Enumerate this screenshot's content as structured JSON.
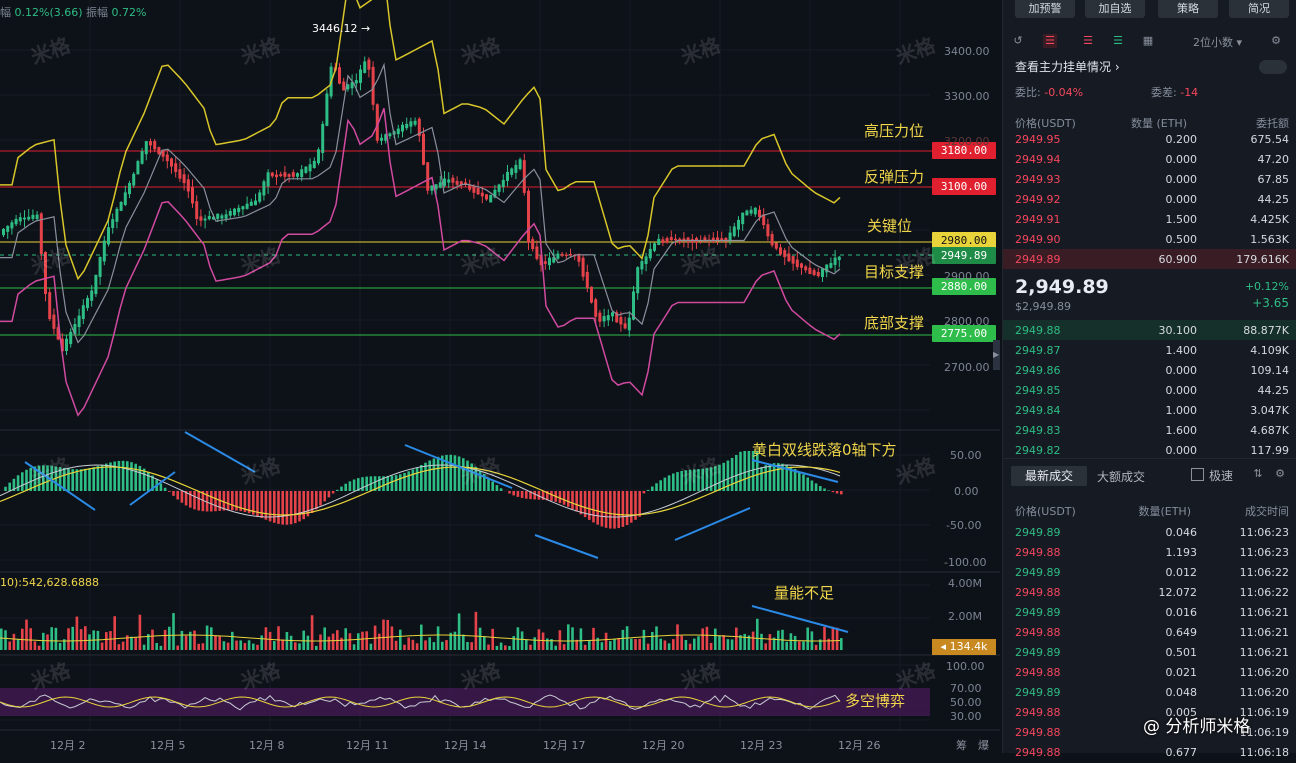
{
  "top_info": {
    "amp_label": "幅",
    "amp_value": "0.12%(3.66)",
    "swing_label": "振幅",
    "swing_value": "0.72%"
  },
  "chart": {
    "high_marker": "3446.12",
    "levels": [
      {
        "label": "高压力位",
        "price": "3180.00",
        "color": "#f6465d"
      },
      {
        "label": "反弹压力",
        "price": "3100.00",
        "color": "#f6465d"
      },
      {
        "label": "关键位",
        "price": "2980.00",
        "color": "#f0d64a"
      },
      {
        "label": "目标支撑",
        "price": "2880.00",
        "color": "#2ebd4a"
      },
      {
        "label": "底部支撑",
        "price": "2775.00",
        "color": "#2ebd4a"
      }
    ],
    "current_price": "2949.89",
    "price_axis": [
      "3400.00",
      "3300.00",
      "3200.00",
      "2900.00",
      "2800.00",
      "2700.00"
    ],
    "macd_axis": [
      "50.00",
      "0.00",
      "-50.00",
      "-100.00"
    ],
    "macd_note": "黄白双线跌落0轴下方",
    "vol_axis": [
      "4.00M",
      "2.00M"
    ],
    "vol_info": "10):542,628.6888",
    "vol_tag": "134.4k",
    "vol_note": "量能不足",
    "rsi_axis": [
      "100.00",
      "70.00",
      "50.00",
      "30.00"
    ],
    "rsi_note": "多空博弈",
    "dates": [
      "12月 2",
      "12月 5",
      "12月 8",
      "12月 11",
      "12月 14",
      "12月 17",
      "12月 20",
      "12月 23",
      "12月 26"
    ],
    "corner": [
      "筹",
      "爆"
    ],
    "watermark": "米格",
    "signature": "@ 分析师米格"
  },
  "panel": {
    "buttons": [
      "加预警",
      "加自选",
      "策略",
      "简况"
    ],
    "precision": "2位小数",
    "main_orders": "查看主力挂单情况",
    "ratio_label": "委比:",
    "ratio_value": "-0.04%",
    "diff_label": "委差:",
    "diff_value": "-14",
    "book_headers": [
      "价格(USDT)",
      "数量 (ETH)",
      "委托额"
    ],
    "asks": [
      [
        "2949.95",
        "0.200",
        "675.54"
      ],
      [
        "2949.94",
        "0.000",
        "47.20"
      ],
      [
        "2949.93",
        "0.000",
        "67.85"
      ],
      [
        "2949.92",
        "0.000",
        "44.25"
      ],
      [
        "2949.91",
        "1.500",
        "4.425K"
      ],
      [
        "2949.90",
        "0.500",
        "1.563K"
      ],
      [
        "2949.89",
        "60.900",
        "179.616K"
      ]
    ],
    "last_price": "2,949.89",
    "last_usd": "$2,949.89",
    "change_pct": "+0.12%",
    "change_abs": "+3.65",
    "bids": [
      [
        "2949.88",
        "30.100",
        "88.877K"
      ],
      [
        "2949.87",
        "1.400",
        "4.109K"
      ],
      [
        "2949.86",
        "0.000",
        "109.14"
      ],
      [
        "2949.85",
        "0.000",
        "44.25"
      ],
      [
        "2949.84",
        "1.000",
        "3.047K"
      ],
      [
        "2949.83",
        "1.600",
        "4.687K"
      ],
      [
        "2949.82",
        "0.000",
        "117.99"
      ]
    ],
    "tabs": [
      "最新成交",
      "大额成交"
    ],
    "fast_label": "极速",
    "trade_headers": [
      "价格(USDT)",
      "数量(ETH)",
      "成交时间"
    ],
    "trades": [
      [
        "2949.89",
        "0.046",
        "11:06:23",
        "g"
      ],
      [
        "2949.88",
        "1.193",
        "11:06:23",
        "r"
      ],
      [
        "2949.89",
        "0.012",
        "11:06:22",
        "g"
      ],
      [
        "2949.88",
        "12.072",
        "11:06:22",
        "r"
      ],
      [
        "2949.89",
        "0.016",
        "11:06:21",
        "g"
      ],
      [
        "2949.88",
        "0.649",
        "11:06:21",
        "r"
      ],
      [
        "2949.89",
        "0.501",
        "11:06:21",
        "g"
      ],
      [
        "2949.88",
        "0.021",
        "11:06:20",
        "r"
      ],
      [
        "2949.89",
        "0.048",
        "11:06:20",
        "g"
      ],
      [
        "2949.88",
        "0.005",
        "11:06:19",
        "r"
      ],
      [
        "2949.88",
        "",
        "11:06:19",
        "r"
      ],
      [
        "2949.88",
        "0.677",
        "11:06:18",
        "r"
      ]
    ]
  }
}
